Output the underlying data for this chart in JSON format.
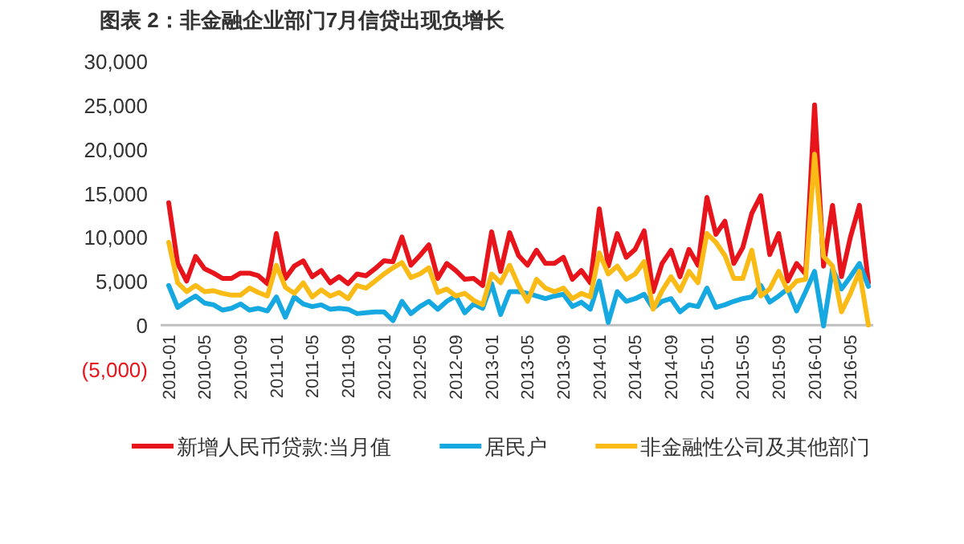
{
  "chart_data": {
    "type": "line",
    "title": "图表 2：非金融企业部门7月信贷出现负增长",
    "categories": [
      "2010-01",
      null,
      null,
      null,
      "2010-05",
      null,
      null,
      null,
      "2010-09",
      null,
      null,
      null,
      "2011-01",
      null,
      null,
      null,
      "2011-05",
      null,
      null,
      null,
      "2011-09",
      null,
      null,
      null,
      "2012-01",
      null,
      null,
      null,
      "2012-05",
      null,
      null,
      null,
      "2012-09",
      null,
      null,
      null,
      "2013-01",
      null,
      null,
      null,
      "2013-05",
      null,
      null,
      null,
      "2013-09",
      null,
      null,
      null,
      "2014-01",
      null,
      null,
      null,
      "2014-05",
      null,
      null,
      null,
      "2014-09",
      null,
      null,
      null,
      "2015-01",
      null,
      null,
      null,
      "2015-05",
      null,
      null,
      null,
      "2015-09",
      null,
      null,
      null,
      "2016-01",
      null,
      null,
      null,
      "2016-05",
      null,
      null
    ],
    "ylim": [
      -5000,
      30000
    ],
    "yticks": [
      {
        "value": -5000,
        "label": "(5,000)"
      },
      {
        "value": 0,
        "label": "0"
      },
      {
        "value": 5000,
        "label": "5,000"
      },
      {
        "value": 10000,
        "label": "10,000"
      },
      {
        "value": 15000,
        "label": "15,000"
      },
      {
        "value": 20000,
        "label": "20,000"
      },
      {
        "value": 25000,
        "label": "25,000"
      },
      {
        "value": 30000,
        "label": "30,000"
      }
    ],
    "grid": false,
    "legend": "bottom",
    "marker": "none",
    "line_style": "solid",
    "series": [
      {
        "name": "新增人民币贷款:当月值",
        "color": "#e8141b",
        "values": [
          13900,
          7000,
          5000,
          7800,
          6400,
          5900,
          5300,
          5300,
          5900,
          5900,
          5600,
          4700,
          10400,
          5300,
          6700,
          7300,
          5500,
          6200,
          4800,
          5500,
          4700,
          5800,
          5600,
          6400,
          7300,
          7200,
          10000,
          6800,
          7900,
          9100,
          5300,
          7000,
          6200,
          5200,
          5300,
          4500,
          10600,
          6100,
          10500,
          7900,
          6800,
          8500,
          7000,
          7000,
          7700,
          5200,
          6200,
          4800,
          13200,
          6700,
          10400,
          7700,
          8600,
          10700,
          3800,
          7000,
          8500,
          5500,
          8600,
          6800,
          14500,
          10300,
          11800,
          7000,
          8800,
          12700,
          14700,
          8000,
          10400,
          5000,
          7000,
          5800,
          25000,
          6700,
          13600,
          5500,
          10000,
          13600,
          4800
        ]
      },
      {
        "name": "居民户",
        "color": "#16a8e0",
        "values": [
          4500,
          2000,
          2700,
          3300,
          2500,
          2300,
          1700,
          1900,
          2400,
          1700,
          1900,
          1600,
          3200,
          900,
          3200,
          2400,
          2100,
          2300,
          1800,
          1900,
          1800,
          1300,
          1400,
          1500,
          1500,
          500,
          2700,
          1300,
          2100,
          2700,
          1800,
          2700,
          3300,
          1400,
          2400,
          1900,
          4700,
          1200,
          3800,
          3800,
          3600,
          3300,
          3000,
          3300,
          3500,
          2100,
          2600,
          1800,
          5000,
          300,
          3800,
          2700,
          3000,
          3500,
          1900,
          2700,
          3000,
          1500,
          2300,
          2100,
          4200,
          2000,
          2300,
          2700,
          3000,
          3200,
          4500,
          2600,
          3300,
          4100,
          1600,
          3800,
          6100,
          -100,
          6400,
          4100,
          5500,
          7000,
          4400
        ]
      },
      {
        "name": "非金融性公司及其他部门",
        "color": "#fbbb16",
        "values": [
          9400,
          4800,
          3800,
          4500,
          3800,
          3900,
          3600,
          3400,
          3400,
          4200,
          3700,
          3300,
          6800,
          4300,
          3600,
          4800,
          3200,
          4000,
          3300,
          3700,
          3000,
          4500,
          4200,
          5000,
          5800,
          6500,
          7100,
          5400,
          5800,
          6500,
          3700,
          4100,
          3300,
          3600,
          2800,
          2300,
          5800,
          4800,
          6800,
          4500,
          2700,
          5200,
          4200,
          3800,
          4200,
          3000,
          3600,
          3200,
          8200,
          5800,
          6700,
          5200,
          5800,
          7200,
          1800,
          3900,
          5500,
          3900,
          6100,
          4800,
          10400,
          9400,
          7900,
          5300,
          5300,
          8500,
          3300,
          4100,
          6100,
          3900,
          5000,
          5200,
          19400,
          7800,
          6700,
          1500,
          3600,
          6100,
          0
        ]
      }
    ]
  }
}
